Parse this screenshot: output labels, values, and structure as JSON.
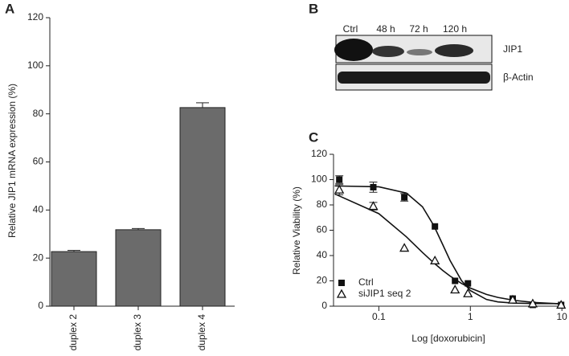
{
  "chart_data": [
    {
      "type": "bar",
      "panel_label": "A",
      "y_label": "Relative JIP1 mRNA expression (%)",
      "categories": [
        "duplex 2",
        "duplex 3",
        "duplex 4"
      ],
      "values": [
        22.7,
        31.8,
        82.6
      ],
      "errors": [
        0.5,
        0.5,
        2
      ],
      "color": "#6b6b6b",
      "ylim": [
        0,
        120
      ],
      "yticks": [
        0,
        20,
        40,
        60,
        80,
        100,
        120
      ]
    },
    {
      "type": "scatter",
      "panel_label": "C",
      "x_label": "Log [doxorubicin]",
      "y_label": "Relative Viability (%)",
      "log_x": true,
      "legend": "lower left",
      "x": [
        0.037,
        0.087,
        0.19,
        0.41,
        0.68,
        0.94,
        2.9,
        4.8,
        9.8
      ],
      "series": [
        {
          "name": "Ctrl",
          "color": "#111111",
          "marker": "square",
          "values": [
            100,
            94,
            86,
            63,
            20,
            18,
            6,
            1,
            1
          ],
          "errors": [
            3,
            4,
            3,
            null,
            null,
            null,
            null,
            null,
            null
          ],
          "fit": {
            "x": [
              0.033,
              0.1,
              0.2,
              0.3,
              0.4,
              0.5,
              0.6,
              0.8,
              1,
              1.5,
              2,
              3,
              5,
              10
            ],
            "values": [
              95,
              94.3,
              89.4,
              78.5,
              63.5,
              48.5,
              36.1,
              20.2,
              12.3,
              5.3,
              3.4,
              2.4,
              2.1,
              2
            ]
          }
        },
        {
          "name": "siJIP1 seq 2",
          "color": "#111111",
          "marker": "triangle",
          "values": [
            92,
            79,
            46,
            36,
            13,
            10,
            5,
            2,
            1
          ],
          "errors": [
            4,
            3,
            null,
            null,
            null,
            null,
            null,
            null,
            null
          ],
          "fit": {
            "x": [
              0.033,
              0.1,
              0.2,
              0.3,
              0.4,
              0.5,
              0.6,
              0.8,
              1,
              1.5,
              2,
              3,
              5,
              10
            ],
            "values": [
              88.7,
              73.1,
              54.8,
              42.4,
              34.1,
              28.2,
              23.8,
              18,
              14.3,
              9.3,
              6.9,
              4.6,
              2.9,
              1.8
            ]
          }
        }
      ],
      "xlim": [
        0.032,
        10.8
      ],
      "xticks": [
        0.1,
        1,
        10
      ],
      "ylim": [
        0,
        120
      ],
      "yticks": [
        0,
        20,
        40,
        60,
        80,
        100,
        120
      ]
    }
  ],
  "blot": {
    "panel_label": "B",
    "lanes": [
      "Ctrl",
      "48 h",
      "72 h",
      "120 h"
    ],
    "rows": [
      "JIP1",
      "β-Actin"
    ]
  }
}
